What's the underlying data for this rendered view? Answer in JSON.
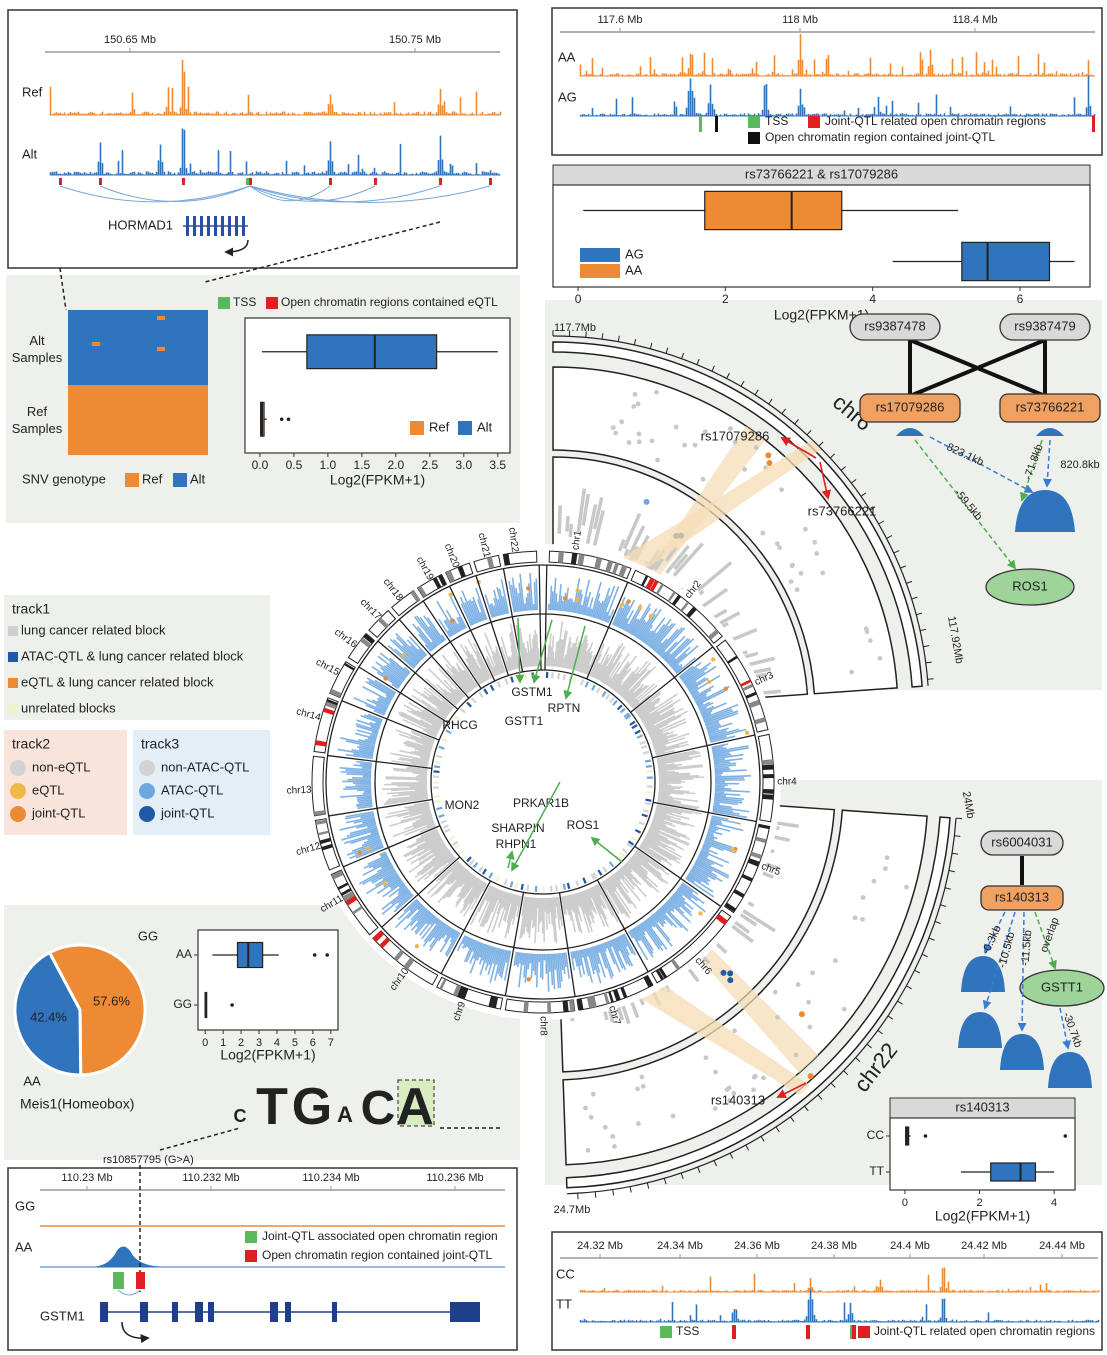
{
  "hormad1_tracks": {
    "ticks": [
      "150.65 Mb",
      "150.75 Mb"
    ],
    "tracks": [
      "Ref",
      "Alt"
    ],
    "gene": "HORMAD1"
  },
  "hormad1_genotype": {
    "rows": [
      "Alt Samples",
      "Ref Samples"
    ],
    "legend_title": "SNV genotype",
    "legend": [
      {
        "name": "Ref",
        "color": "#ee8a34"
      },
      {
        "name": "Alt",
        "color": "#2f74bd"
      }
    ],
    "region_legend": [
      {
        "name": "TSS",
        "color": "#5cb85c"
      },
      {
        "name": "Open chromatin regions contained eQTL",
        "color": "#e02020"
      }
    ]
  },
  "hormad1_box": {
    "type": "box",
    "xlabel": "Log2(FPKM+1)",
    "xlim": [
      -0.22,
      3.68
    ],
    "xticks": [
      {
        "value": 0,
        "label": "0.0"
      },
      {
        "value": 0.5,
        "label": "0.5"
      },
      {
        "value": 1,
        "label": "1.0"
      },
      {
        "value": 1.5,
        "label": "1.5"
      },
      {
        "value": 2,
        "label": "2.0"
      },
      {
        "value": 2.5,
        "label": "2.5"
      },
      {
        "value": 3,
        "label": "3.0"
      },
      {
        "value": 3.5,
        "label": "3.5"
      }
    ],
    "series": [
      {
        "name": "Ref",
        "color": "#ee8a34",
        "stats": [
          0,
          0.01,
          0.03,
          0.06,
          0.1
        ],
        "outliers": [
          0.32,
          0.42
        ]
      },
      {
        "name": "Alt",
        "color": "#2f74bd",
        "stats": [
          0.03,
          0.69,
          1.69,
          2.6,
          3.5
        ],
        "outliers": []
      }
    ]
  },
  "ros1_tracks": {
    "ticks": [
      "117.6 Mb",
      "118 Mb",
      "118.4 Mb"
    ],
    "tracks": [
      "AA",
      "AG"
    ],
    "legend": [
      {
        "name": "TSS",
        "color": "#5cb85c"
      },
      {
        "name": "Joint-QTL related open chromatin regions",
        "color": "#e02020"
      },
      {
        "name": "Open chromatin region contained joint-QTL",
        "color": "#111111"
      }
    ]
  },
  "ros1_box": {
    "type": "box",
    "title": "rs73766221 & rs17079286",
    "xlabel": "Log2(FPKM+1)",
    "xlim": [
      -0.34,
      6.95
    ],
    "xticks": [
      0,
      2,
      4,
      6
    ],
    "series": [
      {
        "name": "AG",
        "color": "#2f74bd",
        "stats": [
          4.27,
          5.21,
          5.56,
          6.4,
          6.74
        ],
        "outliers": []
      },
      {
        "name": "AA",
        "color": "#ee8a34",
        "stats": [
          0.07,
          1.72,
          2.9,
          3.58,
          5.16
        ],
        "outliers": []
      }
    ]
  },
  "network_ros1": {
    "nodes": [
      "rs9387478",
      "rs9387479",
      "rs17079286",
      "rs73766221",
      "ROS1"
    ],
    "edges": [
      "823.1kb",
      "820.8kb",
      "-71.8kb",
      "-59.5kb"
    ]
  },
  "circos": {
    "chromosomes": [
      "chr1",
      "chr2",
      "chr3",
      "chr4",
      "chr5",
      "chr6",
      "chr7",
      "chr8",
      "chr9",
      "chr10",
      "chr11",
      "chr12",
      "chr13",
      "chr14",
      "chr15",
      "chr16",
      "chr17",
      "chr18",
      "chr19",
      "chr20",
      "chr21",
      "chr22"
    ],
    "genes": [
      "GSTM1",
      "GSTT1",
      "RPTN",
      "RHCG",
      "MON2",
      "PRKAR1B",
      "SHARPIN",
      "RHPN1",
      "ROS1"
    ]
  },
  "zoom_chr6": {
    "label": "chr6",
    "start": "117.7Mb",
    "end": "117.92Mb",
    "snps": [
      "rs17079286",
      "rs73766221"
    ]
  },
  "zoom_chr22": {
    "label": "chr22",
    "start": "24Mb",
    "end": "24.7Mb",
    "snps": [
      "rs140313"
    ]
  },
  "track_legend": {
    "track1": {
      "title": "track1",
      "items": [
        {
          "name": "lung cancer related block",
          "color": "#cfcfcf"
        },
        {
          "name": "ATAC-QTL & lung cancer related block",
          "color": "#1f5aa6"
        },
        {
          "name": "eQTL & lung cancer related block",
          "color": "#ee8a34"
        },
        {
          "name": "unrelated blocks",
          "color": "#eef3cf"
        }
      ]
    },
    "track2": {
      "title": "track2",
      "items": [
        {
          "name": "non-eQTL",
          "color": "#d3d3d3"
        },
        {
          "name": "eQTL",
          "color": "#f0b84a"
        },
        {
          "name": "joint-QTL",
          "color": "#ee8a34"
        }
      ]
    },
    "track3": {
      "title": "track3",
      "items": [
        {
          "name": "non-ATAC-QTL",
          "color": "#d3d3d3"
        },
        {
          "name": "ATAC-QTL",
          "color": "#6fa8dc"
        },
        {
          "name": "joint-QTL",
          "color": "#1f5aa6"
        }
      ]
    }
  },
  "pie": {
    "type": "pie",
    "categories": [
      "GG",
      "AA"
    ],
    "values": [
      57.6,
      42.4
    ],
    "value_labels": [
      "57.6%",
      "42.4%"
    ],
    "colors": [
      "#ee8a34",
      "#2f74bd"
    ]
  },
  "gstm1_box": {
    "type": "box",
    "xlabel": "Log2(FPKM+1)",
    "xlim": [
      -0.4,
      7.4
    ],
    "xticks": [
      0,
      1,
      2,
      3,
      4,
      5,
      6,
      7
    ],
    "categories": [
      "AA",
      "GG"
    ],
    "series": [
      {
        "color": "#2f74bd",
        "stats": [
          0.4,
          1.8,
          2.4,
          3.2,
          4.1
        ],
        "outliers": [
          6.1,
          6.8
        ]
      },
      {
        "color": "#2f74bd",
        "stats": [
          0,
          0,
          0.02,
          0.05,
          0.1
        ],
        "outliers": [
          1.5
        ]
      }
    ]
  },
  "motif": {
    "name": "Meis1(Homeobox)",
    "letters": [
      "C",
      "T",
      "G",
      "A",
      "C",
      "A"
    ],
    "snp": "rs10857795 (G>A)"
  },
  "gstm1_tracks": {
    "ticks": [
      "110.23 Mb",
      "110.232 Mb",
      "110.234 Mb",
      "110.236 Mb"
    ],
    "tracks": [
      "GG",
      "AA"
    ],
    "gene": "GSTM1",
    "legend": [
      {
        "name": "Joint-QTL associated open chromatin region",
        "color": "#5cb85c"
      },
      {
        "name": "Open chromatin region contained joint-QTL",
        "color": "#e02020"
      }
    ]
  },
  "network_gstt1": {
    "nodes": [
      "rs6004031",
      "rs140313",
      "GSTT1"
    ],
    "edges": [
      "-0.3kb",
      "-10.5kb",
      "-11.5kb",
      "overlap",
      "-30.7kb"
    ]
  },
  "gstt1_box": {
    "type": "box",
    "title": "rs140313",
    "xlabel": "Log2(FPKM+1)",
    "xlim": [
      -0.4,
      4.56
    ],
    "xticks": [
      0,
      2,
      4
    ],
    "categories": [
      "CC",
      "TT"
    ],
    "series": [
      {
        "color": "#5a1a1a",
        "stats": [
          0,
          0.02,
          0.05,
          0.1,
          0.15
        ],
        "outliers": [
          0.55,
          4.3
        ]
      },
      {
        "color": "#2f74bd",
        "stats": [
          1.5,
          2.3,
          3.1,
          3.5,
          4.0
        ],
        "outliers": []
      }
    ]
  },
  "gstt1_tracks": {
    "ticks": [
      "24.32 Mb",
      "24.34 Mb",
      "24.36 Mb",
      "24.38 Mb",
      "24.4 Mb",
      "24.42 Mb",
      "24.44 Mb"
    ],
    "tracks": [
      "CC",
      "TT"
    ],
    "legend": [
      {
        "name": "TSS",
        "color": "#5cb85c"
      },
      {
        "name": "Joint-QTL related open chromatin regions",
        "color": "#e02020"
      }
    ]
  }
}
